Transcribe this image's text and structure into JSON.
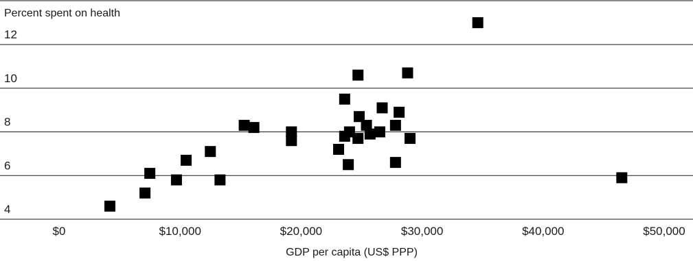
{
  "chart_data": {
    "type": "scatter",
    "title": "",
    "ylabel": "Percent spent on health",
    "xlabel": "GDP per capita (US$ PPP)",
    "xlim": [
      0,
      52000
    ],
    "ylim": [
      4,
      13.8
    ],
    "x_ticks": [
      {
        "value": 0,
        "label": "$0"
      },
      {
        "value": 10000,
        "label": "$10,000"
      },
      {
        "value": 20000,
        "label": "$20,000"
      },
      {
        "value": 30000,
        "label": "$30,000"
      },
      {
        "value": 40000,
        "label": "$40,000"
      },
      {
        "value": 50000,
        "label": "$50,000"
      }
    ],
    "y_ticks": [
      {
        "value": 4,
        "label": "4"
      },
      {
        "value": 6,
        "label": "6"
      },
      {
        "value": 8,
        "label": "8"
      },
      {
        "value": 10,
        "label": "10"
      },
      {
        "value": 12,
        "label": "12"
      }
    ],
    "grid": "horizontal",
    "marker": "square",
    "color": "#000000",
    "points": [
      {
        "x": 4200,
        "y": 4.6
      },
      {
        "x": 7100,
        "y": 5.2
      },
      {
        "x": 7500,
        "y": 6.1
      },
      {
        "x": 9700,
        "y": 5.8
      },
      {
        "x": 10500,
        "y": 6.7
      },
      {
        "x": 12500,
        "y": 7.1
      },
      {
        "x": 13300,
        "y": 5.8
      },
      {
        "x": 15300,
        "y": 8.3
      },
      {
        "x": 16100,
        "y": 8.2
      },
      {
        "x": 19200,
        "y": 8.0
      },
      {
        "x": 19200,
        "y": 7.6
      },
      {
        "x": 23100,
        "y": 7.2
      },
      {
        "x": 23600,
        "y": 7.8
      },
      {
        "x": 23600,
        "y": 9.5
      },
      {
        "x": 23900,
        "y": 6.5
      },
      {
        "x": 24000,
        "y": 8.0
      },
      {
        "x": 24700,
        "y": 7.7
      },
      {
        "x": 24800,
        "y": 8.7
      },
      {
        "x": 24700,
        "y": 10.6
      },
      {
        "x": 25400,
        "y": 8.3
      },
      {
        "x": 25700,
        "y": 7.9
      },
      {
        "x": 26500,
        "y": 8.0
      },
      {
        "x": 26700,
        "y": 9.1
      },
      {
        "x": 27800,
        "y": 6.6
      },
      {
        "x": 27800,
        "y": 8.3
      },
      {
        "x": 28100,
        "y": 8.9
      },
      {
        "x": 28800,
        "y": 10.7
      },
      {
        "x": 29000,
        "y": 7.7
      },
      {
        "x": 34600,
        "y": 13.0
      },
      {
        "x": 46500,
        "y": 5.9
      }
    ]
  }
}
